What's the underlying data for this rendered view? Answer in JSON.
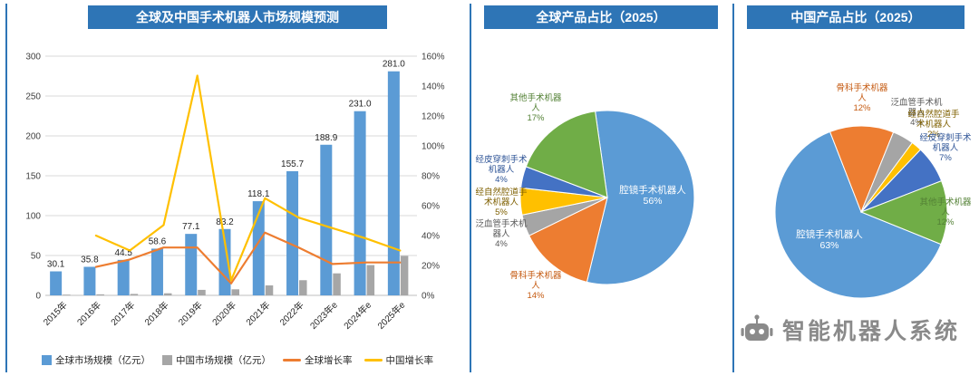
{
  "colors": {
    "header_bg": "#2E75B6",
    "bar_global": "#5B9BD5",
    "bar_china": "#A6A6A6",
    "line_global_growth": "#ED7D31",
    "line_china_growth": "#FFC000",
    "pie_green": "#70AD47",
    "pie_dark_blue": "#4472C4",
    "pie_gray": "#A5A5A5",
    "watermark_gray": "#8A8A8A"
  },
  "watermark": {
    "text": "智能机器人系统",
    "icon": "robot-icon"
  },
  "chart_data": [
    {
      "type": "bar",
      "title": "全球及中国手术机器人市场规模预测",
      "categories": [
        "2015年",
        "2016年",
        "2017年",
        "2018年",
        "2019年",
        "2020年",
        "2021年",
        "2022年",
        "2023年e",
        "2024年e",
        "2025年e"
      ],
      "series": [
        {
          "name": "全球市场规模（亿元）",
          "kind": "bar",
          "color": "#5B9BD5",
          "axis": "left",
          "values": [
            30.1,
            35.8,
            44.5,
            58.6,
            77.1,
            83.2,
            118.1,
            155.7,
            188.9,
            231.0,
            281.0
          ],
          "labels": [
            "30.1",
            "35.8",
            "44.5",
            "58.6",
            "77.1",
            "83.2",
            "118.1",
            "155.7",
            "188.9",
            "231.0",
            "281.0"
          ]
        },
        {
          "name": "中国市场规模（亿元）",
          "kind": "bar",
          "color": "#A6A6A6",
          "axis": "left",
          "values": [
            0.9,
            1.3,
            1.8,
            2.6,
            6.9,
            7.6,
            12.5,
            19.0,
            27.6,
            38.0,
            49.5
          ]
        },
        {
          "name": "全球增长率",
          "kind": "line",
          "color": "#ED7D31",
          "axis": "right",
          "values": [
            null,
            19,
            24,
            32,
            32,
            8,
            42,
            32,
            21,
            22,
            22
          ]
        },
        {
          "name": "中国增长率",
          "kind": "line",
          "color": "#FFC000",
          "axis": "right",
          "values": [
            null,
            40,
            30,
            47,
            147,
            10,
            65,
            52,
            45,
            38,
            30
          ]
        }
      ],
      "left_axis": {
        "min": 0,
        "max": 300,
        "step": 50,
        "ticks": [
          "300",
          "250",
          "200",
          "150",
          "100",
          "50",
          "0"
        ]
      },
      "right_axis": {
        "min": 0,
        "max": 160,
        "step": 20,
        "ticks": [
          "160%",
          "140%",
          "120%",
          "100%",
          "80%",
          "60%",
          "40%",
          "20%",
          "0%"
        ]
      },
      "grid": true,
      "legend_position": "bottom"
    },
    {
      "type": "pie",
      "title": "全球产品占比（2025）",
      "start_angle": -8,
      "slices": [
        {
          "label": "腔镜手术机器人",
          "pct": 56,
          "color": "#5B9BD5",
          "label_inside": true
        },
        {
          "label": "骨科手术机器人",
          "pct": 14,
          "color": "#ED7D31",
          "label_color": "#C55A11"
        },
        {
          "label": "泛血管手术机器人",
          "pct": 4,
          "color": "#A5A5A5",
          "label_color": "#595959"
        },
        {
          "label": "经自然腔道手术机器人",
          "pct": 5,
          "color": "#FFC000",
          "label_color": "#7F6000"
        },
        {
          "label": "经皮穿刺手术机器人",
          "pct": 4,
          "color": "#4472C4",
          "label_color": "#2F5597"
        },
        {
          "label": "其他手术机器人",
          "pct": 17,
          "color": "#70AD47",
          "label_color": "#538135"
        }
      ]
    },
    {
      "type": "pie",
      "title": "中国产品占比（2025）",
      "start_angle": 112,
      "slices": [
        {
          "label": "腔镜手术机器人",
          "pct": 63,
          "color": "#5B9BD5",
          "label_inside": true
        },
        {
          "label": "骨科手术机器人",
          "pct": 12,
          "color": "#ED7D31",
          "label_color": "#C55A11"
        },
        {
          "label": "泛血管手术机器人",
          "pct": 4,
          "color": "#A5A5A5",
          "label_color": "#595959"
        },
        {
          "label": "经自然腔道手术机器人",
          "pct": 2,
          "color": "#FFC000",
          "label_color": "#7F6000"
        },
        {
          "label": "经皮穿刺手术机器人",
          "pct": 7,
          "color": "#4472C4",
          "label_color": "#2F5597"
        },
        {
          "label": "其他手术机器人",
          "pct": 12,
          "color": "#70AD47",
          "label_color": "#538135"
        }
      ]
    }
  ]
}
